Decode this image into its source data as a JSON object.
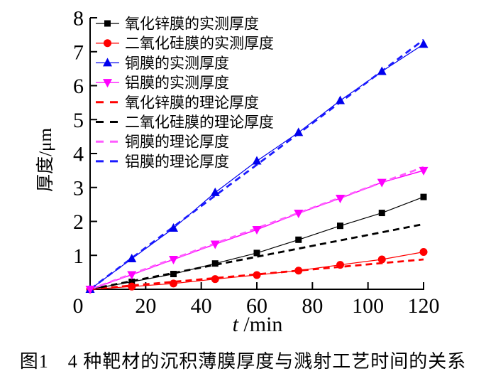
{
  "figure": {
    "caption": "图1　4 种靶材的沉积薄膜厚度与溅射工艺时间的关系"
  },
  "chart_data": {
    "type": "line",
    "title": "",
    "xlabel": "t /min",
    "ylabel": "厚度/μm",
    "xlim": [
      0,
      120
    ],
    "ylim": [
      0,
      8
    ],
    "xticks": [
      0,
      20,
      40,
      60,
      80,
      100,
      120
    ],
    "yticks": [
      0,
      1,
      2,
      3,
      4,
      5,
      6,
      7,
      8
    ],
    "grid": false,
    "legend_position": "top-left-inside",
    "x": [
      0,
      15,
      30,
      45,
      60,
      75,
      90,
      105,
      120
    ],
    "series": [
      {
        "key": "zno-measured",
        "name": "氧化锌膜的实测厚度",
        "color": "#000000",
        "line": "solid",
        "line_width": 1.2,
        "marker": "square",
        "values": [
          0,
          0.22,
          0.45,
          0.76,
          1.07,
          1.46,
          1.87,
          2.25,
          2.72
        ]
      },
      {
        "key": "sio2-measured",
        "name": "二氧化硅膜的实测厚度",
        "color": "#ff0000",
        "line": "solid",
        "line_width": 1.2,
        "marker": "circle",
        "values": [
          0,
          0.08,
          0.17,
          0.3,
          0.42,
          0.55,
          0.72,
          0.88,
          1.1
        ]
      },
      {
        "key": "cu-measured",
        "name": "铜膜的实测厚度",
        "color": "#0000ee",
        "line": "solid",
        "line_width": 1.2,
        "marker": "triangle-up",
        "values": [
          0,
          0.9,
          1.8,
          2.85,
          3.78,
          4.62,
          5.56,
          6.42,
          7.22
        ]
      },
      {
        "key": "al-measured",
        "name": "铝膜的实测厚度",
        "color": "#ff00ff",
        "line": "solid",
        "line_width": 1.5,
        "marker": "triangle-down",
        "values": [
          0,
          0.43,
          0.88,
          1.33,
          1.76,
          2.24,
          2.68,
          3.15,
          3.5
        ]
      },
      {
        "key": "zno-theory",
        "name": "氧化锌膜的理论厚度",
        "color": "#ff0000",
        "line": "dashed",
        "line_width": 2.8,
        "marker": "none",
        "values": [
          0,
          0.11,
          0.22,
          0.33,
          0.44,
          0.55,
          0.66,
          0.77,
          0.88
        ]
      },
      {
        "key": "sio2-theory",
        "name": "二氧化硅膜的理论厚度",
        "color": "#000000",
        "line": "dashed",
        "line_width": 2.8,
        "marker": "none",
        "values": [
          0,
          0.24,
          0.48,
          0.72,
          0.96,
          1.2,
          1.44,
          1.68,
          1.92
        ]
      },
      {
        "key": "cu-theory",
        "name": "铜膜的理论厚度",
        "color": "#ff5cff",
        "line": "dashed",
        "line_width": 2.8,
        "marker": "none",
        "values": [
          0,
          0.45,
          0.9,
          1.35,
          1.8,
          2.25,
          2.7,
          3.15,
          3.6
        ]
      },
      {
        "key": "al-theory",
        "name": "铝膜的理论厚度",
        "color": "#1a1aff",
        "line": "dashed",
        "line_width": 2.8,
        "marker": "none",
        "values": [
          0,
          0.92,
          1.84,
          2.76,
          3.67,
          4.59,
          5.51,
          6.43,
          7.35
        ]
      }
    ]
  }
}
